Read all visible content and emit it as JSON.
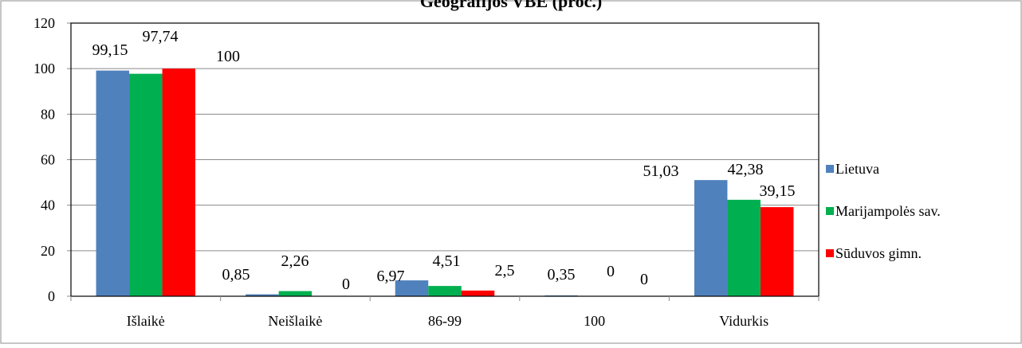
{
  "chart_data": {
    "type": "bar",
    "title": "Geografijos VBE (proc.)",
    "xlabel": "",
    "ylabel": "",
    "categories": [
      "Išlaikė",
      "Neišlaikė",
      "86-99",
      "100",
      "Vidurkis"
    ],
    "ylim": [
      0,
      120
    ],
    "yticks": [
      0,
      20,
      40,
      60,
      80,
      100,
      120
    ],
    "grid": true,
    "legend_position": "right",
    "series": [
      {
        "name": "Lietuva",
        "color": "#4F81BD",
        "values": [
          99.15,
          0.85,
          6.97,
          0.35,
          51.03
        ],
        "labels": [
          "99,15",
          "0,85",
          "6,97",
          "0,35",
          "51,03"
        ]
      },
      {
        "name": "Marijampolės sav.",
        "color": "#00B050",
        "values": [
          97.74,
          2.26,
          4.51,
          0,
          42.38
        ],
        "labels": [
          "97,74",
          "2,26",
          "4,51",
          "0",
          "42,38"
        ]
      },
      {
        "name": "Sūduvos gimn.",
        "color": "#FF0000",
        "values": [
          100,
          0,
          2.5,
          0,
          39.15
        ],
        "labels": [
          "100",
          "0",
          "2,5",
          "0",
          "39,15"
        ]
      }
    ]
  }
}
